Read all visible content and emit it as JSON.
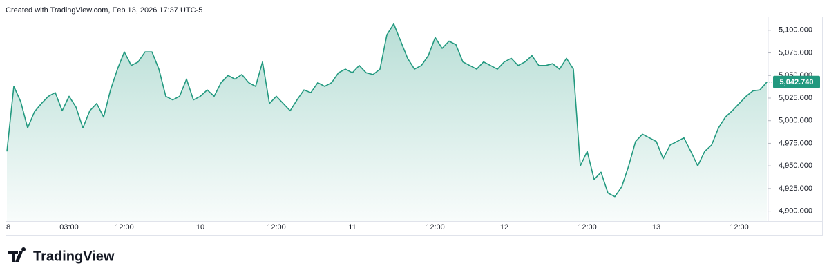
{
  "header": {
    "credit": "Created with TradingView.com, Feb 13, 2026 17:37 UTC-5"
  },
  "footer": {
    "brand": "TradingView"
  },
  "chart_data": {
    "type": "area",
    "color": "#22997f",
    "categories": [
      "8",
      null,
      null,
      null,
      null,
      null,
      null,
      null,
      null,
      "03:00",
      null,
      null,
      null,
      null,
      null,
      null,
      null,
      "12:00",
      null,
      null,
      null,
      null,
      null,
      null,
      null,
      null,
      null,
      null,
      "10",
      null,
      null,
      null,
      null,
      null,
      null,
      null,
      null,
      null,
      null,
      "12:00",
      null,
      null,
      null,
      null,
      null,
      null,
      null,
      null,
      null,
      null,
      "11",
      null,
      null,
      null,
      null,
      null,
      null,
      null,
      null,
      null,
      null,
      null,
      "12:00",
      null,
      null,
      null,
      null,
      null,
      null,
      null,
      null,
      null,
      "12",
      null,
      null,
      null,
      null,
      null,
      null,
      null,
      null,
      null,
      null,
      null,
      "12:00",
      null,
      null,
      null,
      null,
      null,
      null,
      null,
      null,
      null,
      "13",
      null,
      null,
      null,
      null,
      null,
      null,
      null,
      null,
      null,
      null,
      null,
      "12:00",
      null,
      null,
      null,
      null
    ],
    "values": [
      4966,
      5038,
      5021,
      4992,
      5010,
      5019,
      5027,
      5031,
      5011,
      5027,
      5015,
      4992,
      5011,
      5019,
      5004,
      5034,
      5057,
      5076,
      5061,
      5065,
      5076,
      5076,
      5057,
      5027,
      5023,
      5027,
      5046,
      5023,
      5027,
      5034,
      5027,
      5042,
      5050,
      5046,
      5051,
      5042,
      5038,
      5065,
      5019,
      5027,
      5019,
      5011,
      5023,
      5034,
      5031,
      5042,
      5038,
      5042,
      5053,
      5057,
      5053,
      5061,
      5053,
      5051,
      5057,
      5095,
      5107,
      5088,
      5069,
      5057,
      5061,
      5072,
      5092,
      5080,
      5088,
      5084,
      5065,
      5061,
      5057,
      5065,
      5061,
      5057,
      5065,
      5069,
      5061,
      5065,
      5072,
      5061,
      5061,
      5063,
      5057,
      5069,
      5057,
      4950,
      4966,
      4935,
      4943,
      4920,
      4916,
      4927,
      4950,
      4977,
      4985,
      4981,
      4977,
      4958,
      4973,
      4977,
      4981,
      4966,
      4950,
      4966,
      4973,
      4992,
      5004,
      5011,
      5019,
      5027,
      5033,
      5034,
      5042.74
    ],
    "last_value_label": "5,042.740",
    "ylim": [
      4889,
      5122
    ],
    "yticks": [
      {
        "value": 4900,
        "label": "4,900.000"
      },
      {
        "value": 4925,
        "label": "4,925.000"
      },
      {
        "value": 4950,
        "label": "4,950.000"
      },
      {
        "value": 4975,
        "label": "4,975.000"
      },
      {
        "value": 5000,
        "label": "5,000.000"
      },
      {
        "value": 5025,
        "label": "5,025.000"
      },
      {
        "value": 5050,
        "label": "5,050.000"
      },
      {
        "value": 5075,
        "label": "5,075.000"
      },
      {
        "value": 5100,
        "label": "5,100.000"
      }
    ]
  }
}
